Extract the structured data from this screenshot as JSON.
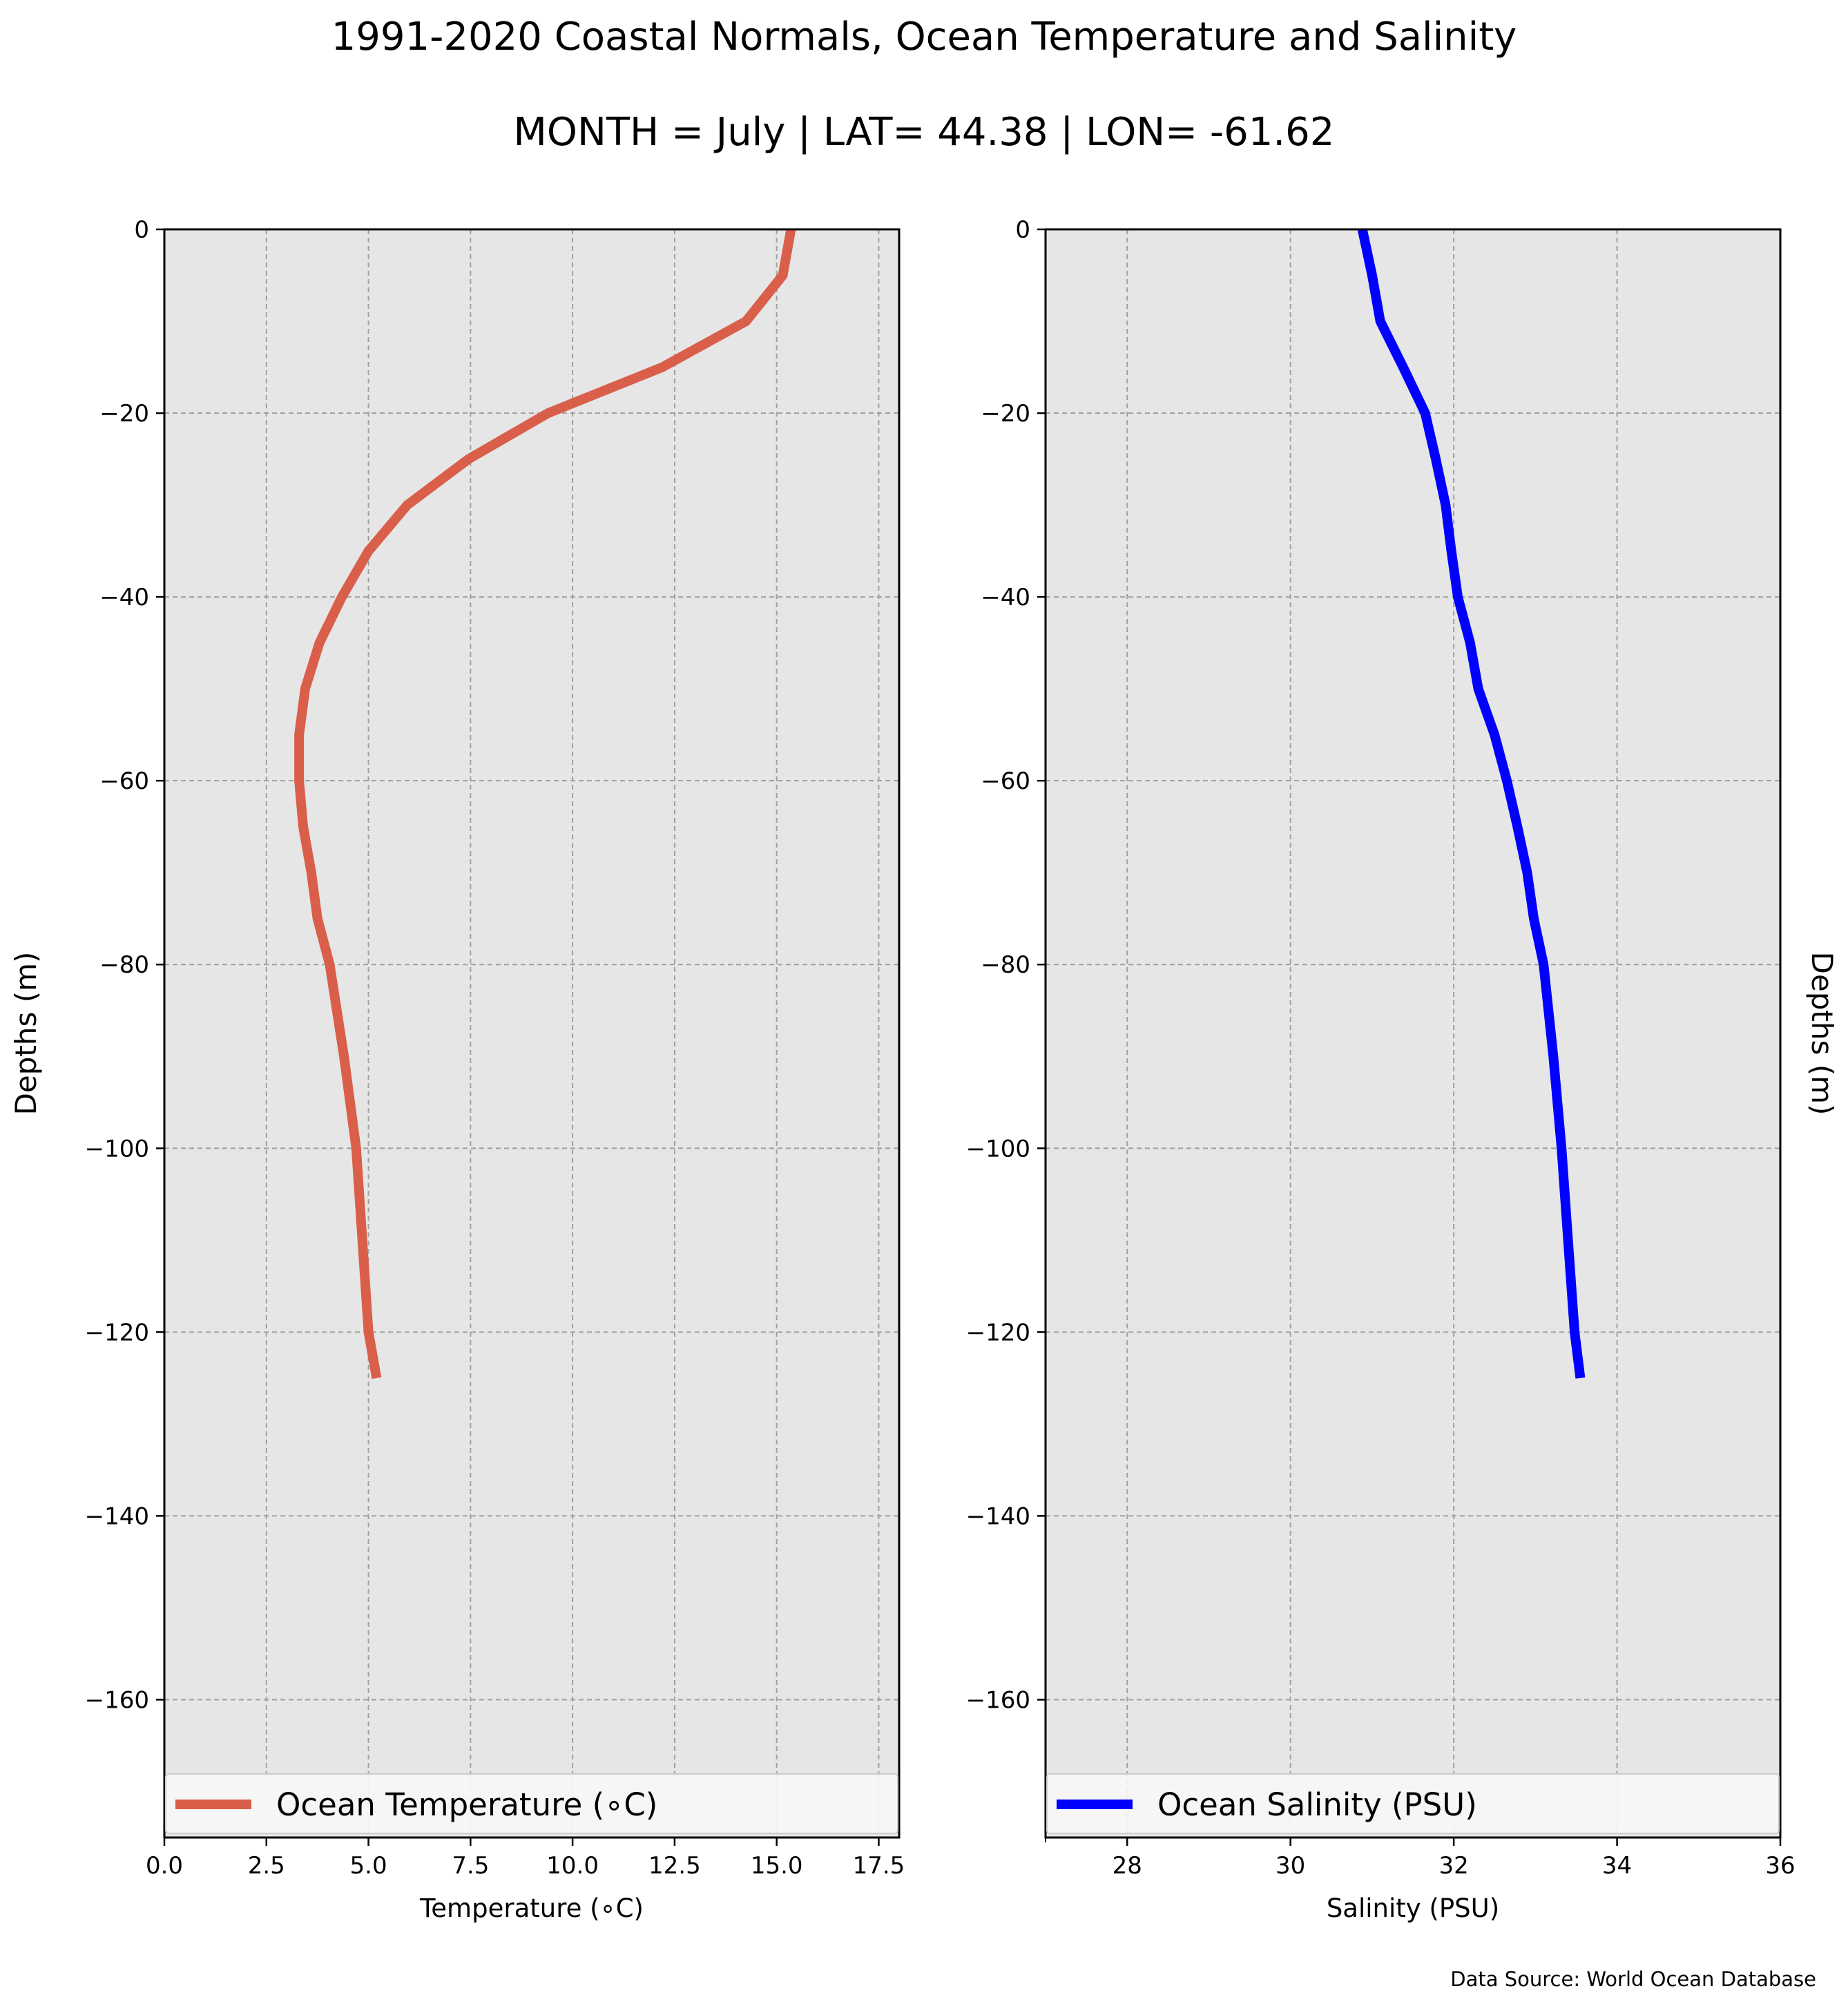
{
  "figure": {
    "title": "1991-2020 Coastal Normals, Ocean Temperature and Salinity",
    "subtitle": "MONTH = July | LAT= 44.38 | LON= -61.62",
    "source": "Data Source: World Ocean Database"
  },
  "chart_data": [
    {
      "type": "line",
      "xlabel": "Temperature (∘C)",
      "ylabel": "Depths (m)",
      "ylabel_side": "left",
      "xlim": [
        0,
        18
      ],
      "ylim": [
        -175,
        0
      ],
      "xticks": [
        0.0,
        2.5,
        5.0,
        7.5,
        10.0,
        12.5,
        15.0,
        17.5
      ],
      "xtick_labels": [
        "0.0",
        "2.5",
        "5.0",
        "7.5",
        "10.0",
        "12.5",
        "15.0",
        "17.5"
      ],
      "yticks": [
        0,
        -20,
        -40,
        -60,
        -80,
        -100,
        -120,
        -140,
        -160
      ],
      "ytick_labels": [
        "0",
        "−20",
        "−40",
        "−60",
        "−80",
        "−100",
        "−120",
        "−140",
        "−160"
      ],
      "grid": true,
      "legend_position": "lower-center",
      "series": [
        {
          "name": "Ocean Temperature (∘C)",
          "color": "#d95f4a",
          "x": [
            15.35,
            15.15,
            14.25,
            12.2,
            9.4,
            7.45,
            5.95,
            5.0,
            4.35,
            3.8,
            3.45,
            3.3,
            3.3,
            3.4,
            3.6,
            3.75,
            4.05,
            4.4,
            4.7,
            4.85,
            5.0,
            5.2
          ],
          "y": [
            0,
            -5,
            -10,
            -15,
            -20,
            -25,
            -30,
            -35,
            -40,
            -45,
            -50,
            -55,
            -60,
            -65,
            -70,
            -75,
            -80,
            -90,
            -100,
            -110,
            -120,
            -125
          ]
        }
      ]
    },
    {
      "type": "line",
      "xlabel": "Salinity (PSU)",
      "ylabel": "Depths (m)",
      "ylabel_side": "right",
      "xlim": [
        27,
        36
      ],
      "ylim": [
        -175,
        0
      ],
      "xticks": [
        28,
        30,
        32,
        34,
        36
      ],
      "xtick_labels": [
        "28",
        "30",
        "32",
        "34",
        "36"
      ],
      "minor_xticks": [
        27
      ],
      "yticks": [
        0,
        -20,
        -40,
        -60,
        -80,
        -100,
        -120,
        -140,
        -160
      ],
      "ytick_labels": [
        "0",
        "−20",
        "−40",
        "−60",
        "−80",
        "−100",
        "−120",
        "−140",
        "−160"
      ],
      "grid": true,
      "legend_position": "lower-center",
      "series": [
        {
          "name": "Ocean Salinity (PSU)",
          "color": "#0000ff",
          "x": [
            30.88,
            31.0,
            31.1,
            31.38,
            31.65,
            31.78,
            31.9,
            31.97,
            32.05,
            32.2,
            32.3,
            32.5,
            32.65,
            32.78,
            32.9,
            32.98,
            33.1,
            33.22,
            33.32,
            33.4,
            33.48,
            33.55
          ],
          "y": [
            0,
            -5,
            -10,
            -15,
            -20,
            -25,
            -30,
            -35,
            -40,
            -45,
            -50,
            -55,
            -60,
            -65,
            -70,
            -75,
            -80,
            -90,
            -100,
            -110,
            -120,
            -125
          ]
        }
      ]
    }
  ]
}
